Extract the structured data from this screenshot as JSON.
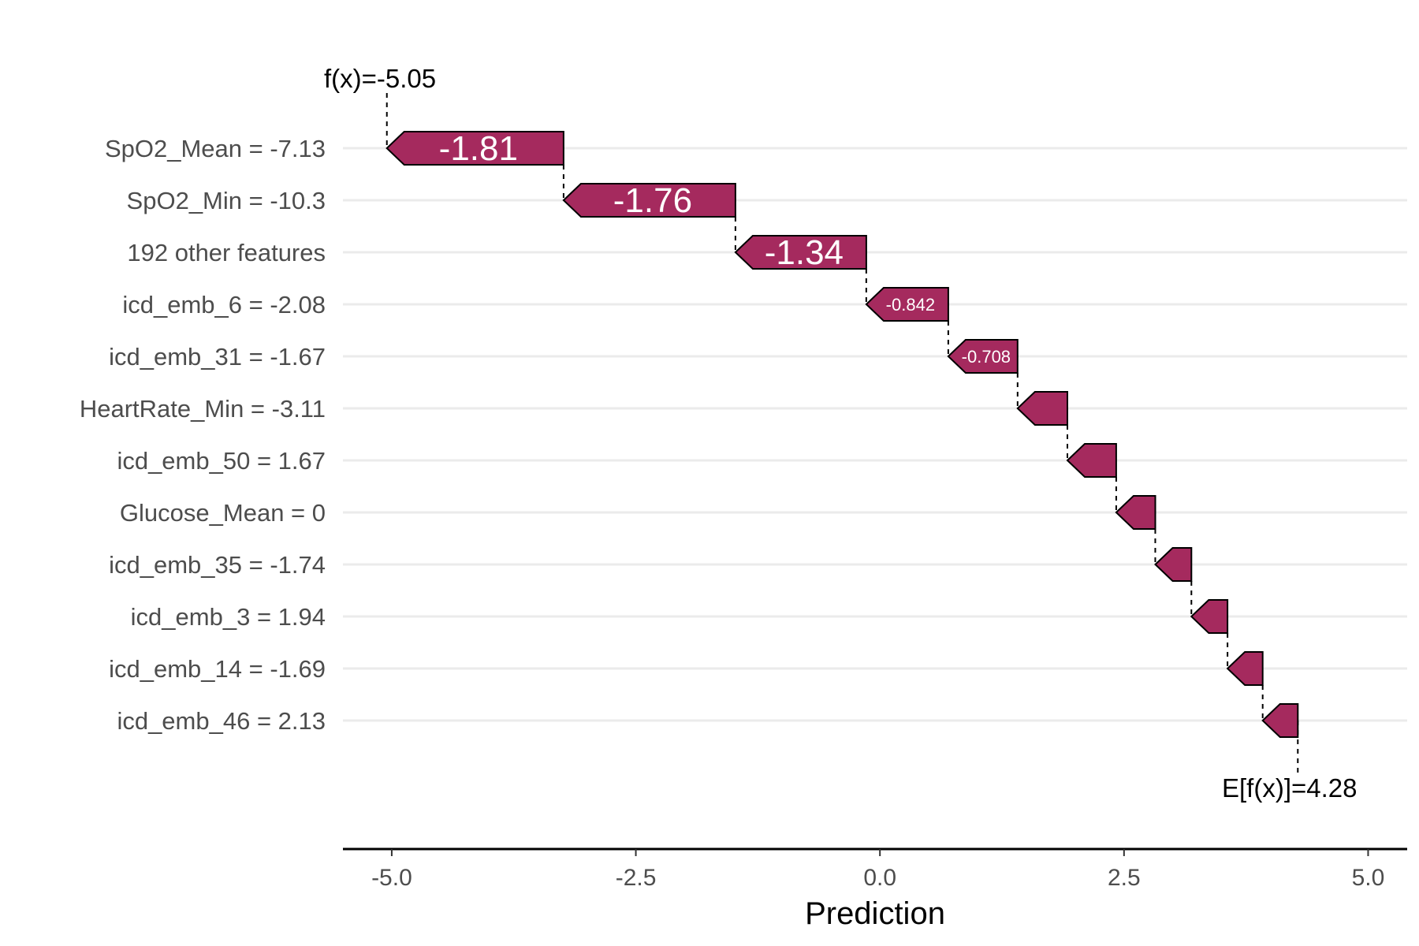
{
  "chart_data": {
    "type": "waterfall",
    "xlabel": "Prediction",
    "xlim": [
      -5.5,
      5.4
    ],
    "x_ticks": [
      -5.0,
      -2.5,
      0.0,
      2.5,
      5.0
    ],
    "x_tick_labels": [
      "-5.0",
      "-2.5",
      "0.0",
      "2.5",
      "5.0"
    ],
    "grid": "horizontal",
    "base_value": 4.28,
    "base_label": "E[f(x)]=4.28",
    "output_value": -5.05,
    "output_label": "f(x)=-5.05",
    "bar_color": "#a52a5e",
    "features": [
      {
        "label": "SpO2_Mean = -7.13",
        "value": -1.81,
        "value_label": "-1.81",
        "start": -3.24,
        "end": -5.05
      },
      {
        "label": "SpO2_Min = -10.3",
        "value": -1.76,
        "value_label": "-1.76",
        "start": -1.48,
        "end": -3.24
      },
      {
        "label": "192 other features",
        "value": -1.34,
        "value_label": "-1.34",
        "start": -0.14,
        "end": -1.48
      },
      {
        "label": "icd_emb_6 = -2.08",
        "value": -0.842,
        "value_label": "-0.842",
        "start": 0.7,
        "end": -0.14
      },
      {
        "label": "icd_emb_31 = -1.67",
        "value": -0.708,
        "value_label": "-0.708",
        "start": 1.41,
        "end": 0.7
      },
      {
        "label": "HeartRate_Min = -3.11",
        "value": -0.51,
        "value_label": "",
        "start": 1.92,
        "end": 1.41
      },
      {
        "label": "icd_emb_50 = 1.67",
        "value": -0.5,
        "value_label": "",
        "start": 2.42,
        "end": 1.92
      },
      {
        "label": "Glucose_Mean = 0",
        "value": -0.4,
        "value_label": "",
        "start": 2.82,
        "end": 2.42
      },
      {
        "label": "icd_emb_35 = -1.74",
        "value": -0.37,
        "value_label": "",
        "start": 3.19,
        "end": 2.82
      },
      {
        "label": "icd_emb_3 = 1.94",
        "value": -0.37,
        "value_label": "",
        "start": 3.56,
        "end": 3.19
      },
      {
        "label": "icd_emb_14 = -1.69",
        "value": -0.36,
        "value_label": "",
        "start": 3.92,
        "end": 3.56
      },
      {
        "label": "icd_emb_46 = 2.13",
        "value": -0.36,
        "value_label": "",
        "start": 4.28,
        "end": 3.92
      }
    ]
  }
}
